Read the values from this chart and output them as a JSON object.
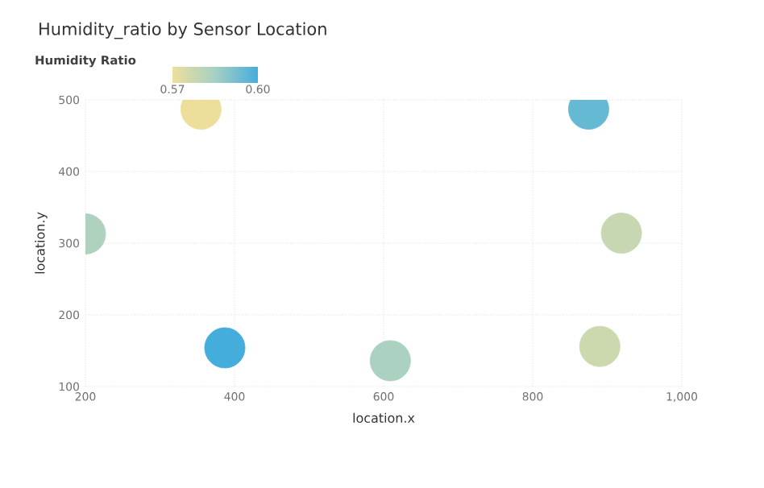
{
  "chart_data": {
    "type": "scatter",
    "title": "Humidity_ratio by Sensor Location",
    "xlabel": "location.x",
    "ylabel": "location.y",
    "clabel": "Humidity Ratio",
    "x": [
      355,
      875,
      200,
      919,
      387,
      609,
      890
    ],
    "values": [
      487,
      487,
      313,
      314,
      154,
      136,
      156
    ],
    "cvalues": [
      0.57,
      0.595,
      0.583,
      0.578,
      0.6,
      0.584,
      0.577
    ],
    "clim": [
      0.57,
      0.6
    ],
    "cticks": [
      0.57,
      {
        "value": 0.6,
        "label": "0.60"
      }
    ],
    "xlim": [
      200,
      1000
    ],
    "ylim": [
      100,
      500
    ],
    "xticks": [
      200,
      400,
      600,
      800,
      {
        "value": 1000,
        "label": "1,000"
      }
    ],
    "yticks": [
      100,
      200,
      300,
      400,
      500
    ],
    "grid": true,
    "marker": "circle"
  }
}
